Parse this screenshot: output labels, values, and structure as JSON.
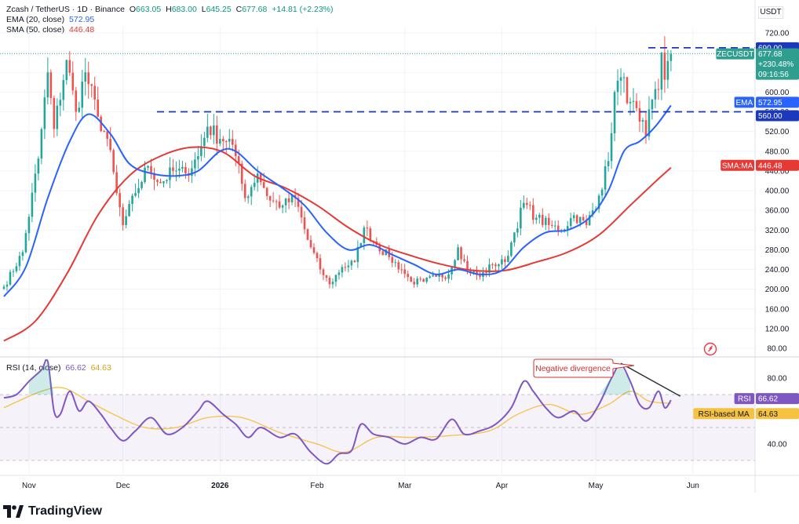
{
  "header": {
    "symbol": "Zcash / TetherUS · 1D · Binance",
    "o_label": "O",
    "o": "663.05",
    "h_label": "H",
    "h": "683.00",
    "l_label": "L",
    "l": "645.25",
    "c_label": "C",
    "c": "677.68",
    "change": "+14.81 (+2.23%)",
    "ema_label": "EMA (20, close)",
    "ema_value": "572.95",
    "sma_label": "SMA (50, close)",
    "sma_value": "446.48",
    "rsi_label": "RSI (14, close)",
    "rsi_value": "66.62",
    "rsi_ma_value": "64.63"
  },
  "currency": "USDT",
  "price_labels": {
    "symbol": "ZECUSDT",
    "last": "677.68",
    "pct": "+230.48%",
    "countdown": "09:16:56",
    "level_high": "690.00",
    "level_low": "560.00",
    "ema_tag": "EMA",
    "ema_val": "572.95",
    "sma_tag": "SMA:MA",
    "sma_val": "446.48",
    "rsi_tag": "RSI",
    "rsi_val": "66.62",
    "rsi_ma_tag": "RSI-based MA",
    "rsi_ma_val": "64.63"
  },
  "annotation": "Negative divergence",
  "brand": "TradingView",
  "colors": {
    "up": "#26a69a",
    "down": "#ef5350",
    "ema": "#2962ff",
    "sma": "#e53935",
    "rsi": "#7e57c2",
    "rsi_ma": "#f5c242",
    "level": "#1c39bb",
    "divergence": "#2a2e39",
    "annotation_border": "#d32f2f",
    "last_price": "#2f9e8f"
  },
  "chart_data": [
    {
      "type": "candlestick",
      "title": "Zcash / TetherUS · 1D · Binance",
      "xlabel": "",
      "ylabel": "",
      "x_tick_labels": [
        "Nov",
        "Dec",
        "2026",
        "Feb",
        "Mar",
        "Apr",
        "May",
        "Jun"
      ],
      "y_tick_labels": [
        "720.00",
        "680.00",
        "640.00",
        "600.00",
        "560.00",
        "520.00",
        "480.00",
        "440.00",
        "400.00",
        "360.00",
        "320.00",
        "280.00",
        "240.00",
        "200.00",
        "160.00",
        "120.00",
        "80.00"
      ],
      "ylim": [
        80,
        720
      ],
      "horizontal_levels": [
        690,
        560
      ],
      "close_anchors": [
        {
          "date": "2025-10-24",
          "close": 205
        },
        {
          "date": "2025-10-30",
          "close": 275
        },
        {
          "date": "2025-11-04",
          "close": 465
        },
        {
          "date": "2025-11-07",
          "close": 640
        },
        {
          "date": "2025-11-09",
          "close": 525
        },
        {
          "date": "2025-11-13",
          "close": 665
        },
        {
          "date": "2025-11-16",
          "close": 560
        },
        {
          "date": "2025-11-19",
          "close": 640
        },
        {
          "date": "2025-11-23",
          "close": 550
        },
        {
          "date": "2025-11-26",
          "close": 505
        },
        {
          "date": "2025-11-29",
          "close": 395
        },
        {
          "date": "2025-12-01",
          "close": 330
        },
        {
          "date": "2025-12-05",
          "close": 395
        },
        {
          "date": "2025-12-09",
          "close": 450
        },
        {
          "date": "2025-12-13",
          "close": 415
        },
        {
          "date": "2025-12-17",
          "close": 440
        },
        {
          "date": "2025-12-21",
          "close": 435
        },
        {
          "date": "2025-12-25",
          "close": 470
        },
        {
          "date": "2025-12-28",
          "close": 530
        },
        {
          "date": "2026-01-01",
          "close": 505
        },
        {
          "date": "2026-01-04",
          "close": 505
        },
        {
          "date": "2026-01-06",
          "close": 470
        },
        {
          "date": "2026-01-09",
          "close": 385
        },
        {
          "date": "2026-01-13",
          "close": 435
        },
        {
          "date": "2026-01-17",
          "close": 380
        },
        {
          "date": "2026-01-21",
          "close": 370
        },
        {
          "date": "2026-01-25",
          "close": 385
        },
        {
          "date": "2026-01-29",
          "close": 300
        },
        {
          "date": "2026-02-02",
          "close": 240
        },
        {
          "date": "2026-02-05",
          "close": 210
        },
        {
          "date": "2026-02-09",
          "close": 245
        },
        {
          "date": "2026-02-13",
          "close": 255
        },
        {
          "date": "2026-02-16",
          "close": 325
        },
        {
          "date": "2026-02-20",
          "close": 290
        },
        {
          "date": "2026-02-24",
          "close": 265
        },
        {
          "date": "2026-02-28",
          "close": 240
        },
        {
          "date": "2026-03-03",
          "close": 215
        },
        {
          "date": "2026-03-07",
          "close": 215
        },
        {
          "date": "2026-03-11",
          "close": 225
        },
        {
          "date": "2026-03-15",
          "close": 230
        },
        {
          "date": "2026-03-18",
          "close": 285
        },
        {
          "date": "2026-03-21",
          "close": 240
        },
        {
          "date": "2026-03-25",
          "close": 225
        },
        {
          "date": "2026-03-29",
          "close": 250
        },
        {
          "date": "2026-04-02",
          "close": 255
        },
        {
          "date": "2026-04-05",
          "close": 315
        },
        {
          "date": "2026-04-08",
          "close": 375
        },
        {
          "date": "2026-04-12",
          "close": 345
        },
        {
          "date": "2026-04-16",
          "close": 330
        },
        {
          "date": "2026-04-20",
          "close": 320
        },
        {
          "date": "2026-04-24",
          "close": 350
        },
        {
          "date": "2026-04-28",
          "close": 330
        },
        {
          "date": "2026-05-02",
          "close": 390
        },
        {
          "date": "2026-05-05",
          "close": 460
        },
        {
          "date": "2026-05-07",
          "close": 600
        },
        {
          "date": "2026-05-09",
          "close": 630
        },
        {
          "date": "2026-05-12",
          "close": 580
        },
        {
          "date": "2026-05-15",
          "close": 540
        },
        {
          "date": "2026-05-17",
          "close": 510
        },
        {
          "date": "2026-05-19",
          "close": 585
        },
        {
          "date": "2026-05-21",
          "close": 605
        },
        {
          "date": "2026-05-22",
          "close": 680
        },
        {
          "date": "2026-05-23",
          "close": 625
        },
        {
          "date": "2026-05-24",
          "close": 663
        },
        {
          "date": "2026-05-25",
          "close": 677.68
        }
      ],
      "ema20_anchors": [
        {
          "date": "2025-10-24",
          "value": 185
        },
        {
          "date": "2025-10-31",
          "value": 245
        },
        {
          "date": "2025-11-07",
          "value": 385
        },
        {
          "date": "2025-11-14",
          "value": 500
        },
        {
          "date": "2025-11-20",
          "value": 555
        },
        {
          "date": "2025-11-27",
          "value": 515
        },
        {
          "date": "2025-12-03",
          "value": 455
        },
        {
          "date": "2025-12-10",
          "value": 435
        },
        {
          "date": "2025-12-18",
          "value": 430
        },
        {
          "date": "2025-12-25",
          "value": 440
        },
        {
          "date": "2026-01-01",
          "value": 480
        },
        {
          "date": "2026-01-06",
          "value": 480
        },
        {
          "date": "2026-01-13",
          "value": 440
        },
        {
          "date": "2026-01-21",
          "value": 405
        },
        {
          "date": "2026-01-28",
          "value": 370
        },
        {
          "date": "2026-02-04",
          "value": 315
        },
        {
          "date": "2026-02-11",
          "value": 280
        },
        {
          "date": "2026-02-18",
          "value": 290
        },
        {
          "date": "2026-02-25",
          "value": 270
        },
        {
          "date": "2026-03-04",
          "value": 250
        },
        {
          "date": "2026-03-11",
          "value": 230
        },
        {
          "date": "2026-03-18",
          "value": 240
        },
        {
          "date": "2026-03-25",
          "value": 230
        },
        {
          "date": "2026-04-01",
          "value": 238
        },
        {
          "date": "2026-04-08",
          "value": 285
        },
        {
          "date": "2026-04-15",
          "value": 315
        },
        {
          "date": "2026-04-22",
          "value": 320
        },
        {
          "date": "2026-04-29",
          "value": 345
        },
        {
          "date": "2026-05-05",
          "value": 400
        },
        {
          "date": "2026-05-10",
          "value": 480
        },
        {
          "date": "2026-05-15",
          "value": 500
        },
        {
          "date": "2026-05-20",
          "value": 530
        },
        {
          "date": "2026-05-25",
          "value": 572.95
        }
      ],
      "sma50_anchors": [
        {
          "date": "2025-10-24",
          "value": 95
        },
        {
          "date": "2025-11-03",
          "value": 135
        },
        {
          "date": "2025-11-13",
          "value": 230
        },
        {
          "date": "2025-11-23",
          "value": 350
        },
        {
          "date": "2025-12-03",
          "value": 430
        },
        {
          "date": "2025-12-13",
          "value": 470
        },
        {
          "date": "2025-12-23",
          "value": 488
        },
        {
          "date": "2026-01-02",
          "value": 478
        },
        {
          "date": "2026-01-12",
          "value": 430
        },
        {
          "date": "2026-01-22",
          "value": 405
        },
        {
          "date": "2026-02-01",
          "value": 370
        },
        {
          "date": "2026-02-11",
          "value": 325
        },
        {
          "date": "2026-02-21",
          "value": 290
        },
        {
          "date": "2026-03-03",
          "value": 268
        },
        {
          "date": "2026-03-13",
          "value": 250
        },
        {
          "date": "2026-03-23",
          "value": 238
        },
        {
          "date": "2026-04-02",
          "value": 238
        },
        {
          "date": "2026-04-12",
          "value": 255
        },
        {
          "date": "2026-04-22",
          "value": 275
        },
        {
          "date": "2026-05-02",
          "value": 310
        },
        {
          "date": "2026-05-12",
          "value": 370
        },
        {
          "date": "2026-05-20",
          "value": 418
        },
        {
          "date": "2026-05-25",
          "value": 446.48
        }
      ]
    },
    {
      "type": "line",
      "title": "RSI (14, close)",
      "xlabel": "",
      "ylabel": "",
      "x_tick_labels": [
        "Nov",
        "Dec",
        "2026",
        "Feb",
        "Mar",
        "Apr",
        "May",
        "Jun"
      ],
      "y_tick_labels": [
        "80.00",
        "40.00"
      ],
      "ylim": [
        20,
        100
      ],
      "bands": [
        70,
        30
      ],
      "series": [
        {
          "name": "RSI",
          "points": [
            {
              "date": "2025-10-24",
              "value": 68
            },
            {
              "date": "2025-10-28",
              "value": 70
            },
            {
              "date": "2025-11-01",
              "value": 78
            },
            {
              "date": "2025-11-05",
              "value": 85
            },
            {
              "date": "2025-11-07",
              "value": 90
            },
            {
              "date": "2025-11-09",
              "value": 60
            },
            {
              "date": "2025-11-11",
              "value": 58
            },
            {
              "date": "2025-11-14",
              "value": 72
            },
            {
              "date": "2025-11-17",
              "value": 60
            },
            {
              "date": "2025-11-20",
              "value": 66
            },
            {
              "date": "2025-11-24",
              "value": 58
            },
            {
              "date": "2025-11-27",
              "value": 50
            },
            {
              "date": "2025-12-01",
              "value": 42
            },
            {
              "date": "2025-12-05",
              "value": 48
            },
            {
              "date": "2025-12-10",
              "value": 56
            },
            {
              "date": "2025-12-15",
              "value": 46
            },
            {
              "date": "2025-12-20",
              "value": 50
            },
            {
              "date": "2025-12-25",
              "value": 60
            },
            {
              "date": "2025-12-28",
              "value": 66
            },
            {
              "date": "2026-01-02",
              "value": 58
            },
            {
              "date": "2026-01-06",
              "value": 52
            },
            {
              "date": "2026-01-10",
              "value": 44
            },
            {
              "date": "2026-01-14",
              "value": 50
            },
            {
              "date": "2026-01-20",
              "value": 44
            },
            {
              "date": "2026-01-25",
              "value": 46
            },
            {
              "date": "2026-01-30",
              "value": 35
            },
            {
              "date": "2026-02-04",
              "value": 28
            },
            {
              "date": "2026-02-08",
              "value": 34
            },
            {
              "date": "2026-02-12",
              "value": 36
            },
            {
              "date": "2026-02-15",
              "value": 52
            },
            {
              "date": "2026-02-19",
              "value": 46
            },
            {
              "date": "2026-02-24",
              "value": 44
            },
            {
              "date": "2026-03-01",
              "value": 40
            },
            {
              "date": "2026-03-06",
              "value": 44
            },
            {
              "date": "2026-03-11",
              "value": 43
            },
            {
              "date": "2026-03-16",
              "value": 55
            },
            {
              "date": "2026-03-20",
              "value": 46
            },
            {
              "date": "2026-03-25",
              "value": 48
            },
            {
              "date": "2026-03-30",
              "value": 52
            },
            {
              "date": "2026-04-04",
              "value": 62
            },
            {
              "date": "2026-04-08",
              "value": 78
            },
            {
              "date": "2026-04-11",
              "value": 72
            },
            {
              "date": "2026-04-15",
              "value": 62
            },
            {
              "date": "2026-04-19",
              "value": 56
            },
            {
              "date": "2026-04-24",
              "value": 60
            },
            {
              "date": "2026-04-28",
              "value": 54
            },
            {
              "date": "2026-05-02",
              "value": 64
            },
            {
              "date": "2026-05-06",
              "value": 80
            },
            {
              "date": "2026-05-09",
              "value": 88
            },
            {
              "date": "2026-05-12",
              "value": 78
            },
            {
              "date": "2026-05-15",
              "value": 64
            },
            {
              "date": "2026-05-18",
              "value": 62
            },
            {
              "date": "2026-05-21",
              "value": 72
            },
            {
              "date": "2026-05-23",
              "value": 62
            },
            {
              "date": "2026-05-25",
              "value": 66.62
            }
          ]
        },
        {
          "name": "RSI-based MA",
          "points": [
            {
              "date": "2025-10-24",
              "value": 62
            },
            {
              "date": "2025-11-05",
              "value": 72
            },
            {
              "date": "2025-11-12",
              "value": 74
            },
            {
              "date": "2025-11-20",
              "value": 66
            },
            {
              "date": "2025-11-28",
              "value": 58
            },
            {
              "date": "2025-12-08",
              "value": 50
            },
            {
              "date": "2025-12-18",
              "value": 50
            },
            {
              "date": "2025-12-28",
              "value": 56
            },
            {
              "date": "2026-01-08",
              "value": 56
            },
            {
              "date": "2026-01-20",
              "value": 47
            },
            {
              "date": "2026-02-01",
              "value": 40
            },
            {
              "date": "2026-02-10",
              "value": 35
            },
            {
              "date": "2026-02-20",
              "value": 44
            },
            {
              "date": "2026-03-03",
              "value": 44
            },
            {
              "date": "2026-03-15",
              "value": 45
            },
            {
              "date": "2026-03-28",
              "value": 48
            },
            {
              "date": "2026-04-06",
              "value": 58
            },
            {
              "date": "2026-04-16",
              "value": 64
            },
            {
              "date": "2026-04-26",
              "value": 58
            },
            {
              "date": "2026-05-05",
              "value": 64
            },
            {
              "date": "2026-05-12",
              "value": 72
            },
            {
              "date": "2026-05-18",
              "value": 66
            },
            {
              "date": "2026-05-25",
              "value": 64.63
            }
          ]
        }
      ],
      "divergence_line": [
        {
          "date": "2026-05-09",
          "value": 89
        },
        {
          "date": "2026-05-28",
          "value": 69
        }
      ]
    }
  ]
}
